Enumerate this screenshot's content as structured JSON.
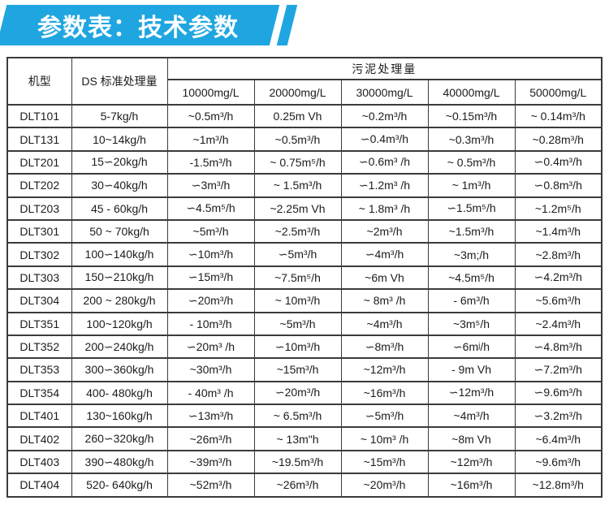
{
  "banner": {
    "title": "参数表：技术参数",
    "color": "#1FA6E1"
  },
  "table": {
    "header": {
      "model": "机型",
      "ds": "DS 标准处理量",
      "sludge_group": "污泥处理量",
      "concentrations": [
        "10000mg/L",
        "20000mg/L",
        "30000mg/L",
        "40000mg/L",
        "50000mg/L"
      ]
    },
    "rows": [
      {
        "model": "DLT101",
        "ds": "5-7kg/h",
        "values": [
          "~0.5m³/h",
          "0.25m Vh",
          "~0.2m³/h",
          "~0.15m³/h",
          "~ 0.14m³/h"
        ]
      },
      {
        "model": "DLT131",
        "ds": "10~14kg/h",
        "values": [
          "~1m³/h",
          "~0.5m³/h",
          "∽0.4m³/h",
          "~0.3m³/h",
          "~0.28m³/h"
        ]
      },
      {
        "model": "DLT201",
        "ds": "15∽20kg/h",
        "values": [
          "-1.5m³/h",
          "~ 0.75m⁵/h",
          "∽0.6m³ /h",
          "~ 0.5m³/h",
          "∽0.4m³/h"
        ]
      },
      {
        "model": "DLT202",
        "ds": "30∽40kg/h",
        "values": [
          "∽3m³/h",
          "~ 1.5m³/h",
          "∽1.2m³ /h",
          "~ 1m³/h",
          "∽0.8m³/h"
        ]
      },
      {
        "model": "DLT203",
        "ds": "45 - 60kg/h",
        "values": [
          "∽4.5m⁵/h",
          "~2.25m Vh",
          "~ 1.8m³ /h",
          "∽1.5m⁵/h",
          "~1.2m⁵/h"
        ]
      },
      {
        "model": "DLT301",
        "ds": "50 ~ 70kg/h",
        "values": [
          "~5m³/h",
          "~2.5m³/h",
          "~2m³/h",
          "~1.5m³/h",
          "~1.4m³/h"
        ]
      },
      {
        "model": "DLT302",
        "ds": "100∽140kg/h",
        "values": [
          "∽10m³/h",
          "∽5m³/h",
          "∽4m³/h",
          "~3m;/h",
          "~2.8m³/h"
        ]
      },
      {
        "model": "DLT303",
        "ds": "150∽210kg/h",
        "values": [
          "∽15m³/h",
          "~7.5m⁵/h",
          "~6m Vh",
          "~4.5m⁵/h",
          "∽4.2m³/h"
        ]
      },
      {
        "model": "DLT304",
        "ds": "200 ~ 280kg/h",
        "values": [
          "∽20m³/h",
          "~ 10m³/h",
          "~ 8m³ /h",
          "- 6m³/h",
          "~5.6m³/h"
        ]
      },
      {
        "model": "DLT351",
        "ds": "100~120kg/h",
        "values": [
          "- 10m³/h",
          "~5m³/h",
          "~4m³/h",
          "~3m⁵/h",
          "~2.4m³/h"
        ]
      },
      {
        "model": "DLT352",
        "ds": "200∽240kg/h",
        "values": [
          "∽20m³ /h",
          "∽10m³/h",
          "∽8m³/h",
          "∽6mʲ/h",
          "∽4.8m³/h"
        ]
      },
      {
        "model": "DLT353",
        "ds": "300∽360kg/h",
        "values": [
          "~30m³/h",
          "~15m³/h",
          "~12m³/h",
          "- 9m Vh",
          "∽7.2m³/h"
        ]
      },
      {
        "model": "DLT354",
        "ds": "400- 480kg/h",
        "values": [
          "- 40m³ /h",
          "∽20m³/h",
          "~16m³/h",
          "∽12m³/h",
          "∽9.6m³/h"
        ]
      },
      {
        "model": "DLT401",
        "ds": "130~160kg/h",
        "values": [
          "∽13m³/h",
          "~ 6.5m³/h",
          "∽5m³/h",
          "~4m³/h",
          "∽3.2m³/h"
        ]
      },
      {
        "model": "DLT402",
        "ds": "260∽320kg/h",
        "values": [
          "~26m³/h",
          "~ 13m\"h",
          "~ 10m³ /h",
          "~8m Vh",
          "~6.4m³/h"
        ]
      },
      {
        "model": "DLT403",
        "ds": "390∽480kg/h",
        "values": [
          "~39m³/h",
          "~19.5m³/h",
          "~15m³/h",
          "~12m³/h",
          "~9.6m³/h"
        ]
      },
      {
        "model": "DLT404",
        "ds": "520- 640kg/h",
        "values": [
          "~52m³/h",
          "~26m³/h",
          "~20m³/h",
          "~16m³/h",
          "~12.8m³/h"
        ]
      }
    ]
  }
}
